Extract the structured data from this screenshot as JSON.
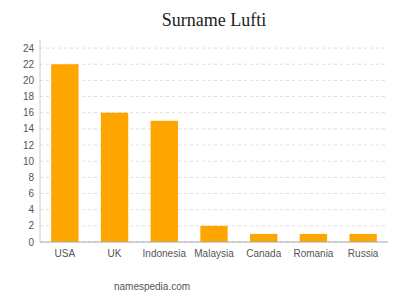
{
  "chart_data": {
    "type": "bar",
    "title": "Surname Lufti",
    "categories": [
      "USA",
      "UK",
      "Indonesia",
      "Malaysia",
      "Canada",
      "Romania",
      "Russia"
    ],
    "values": [
      22,
      16,
      15,
      2,
      1,
      1,
      1
    ],
    "color": "#FFA500",
    "ylim": [
      0,
      25
    ],
    "yticks": [
      0,
      2,
      4,
      6,
      8,
      10,
      12,
      14,
      16,
      18,
      20,
      22,
      24
    ],
    "grid": true,
    "annotations": [
      "namespedia.com"
    ]
  }
}
